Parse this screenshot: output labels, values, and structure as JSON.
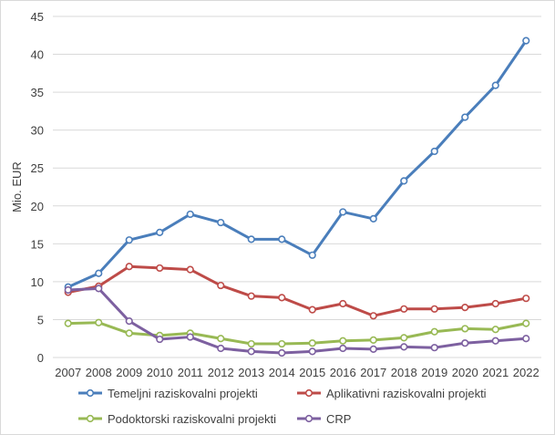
{
  "chart_data": {
    "type": "line",
    "title": "",
    "xlabel": "",
    "ylabel": "Mio. EUR",
    "ylim": [
      0,
      45
    ],
    "yticks": [
      0,
      5,
      10,
      15,
      20,
      25,
      30,
      35,
      40,
      45
    ],
    "grid": true,
    "legend_position": "bottom",
    "x": [
      "2007",
      "2008",
      "2009",
      "2010",
      "2011",
      "2012",
      "2013",
      "2014",
      "2015",
      "2016",
      "2017",
      "2018",
      "2019",
      "2020",
      "2021",
      "2022"
    ],
    "series": [
      {
        "name": "Temeljni raziskovalni projekti",
        "color": "#4a7ebb",
        "values": [
          9.3,
          11.1,
          15.5,
          16.5,
          18.9,
          17.8,
          15.6,
          15.6,
          13.5,
          19.2,
          18.3,
          23.3,
          27.2,
          31.7,
          35.9,
          41.8
        ]
      },
      {
        "name": "Aplikativni raziskovalni projekti",
        "color": "#be4b48",
        "values": [
          8.6,
          9.4,
          12.0,
          11.8,
          11.6,
          9.5,
          8.1,
          7.9,
          6.3,
          7.1,
          5.5,
          6.4,
          6.4,
          6.6,
          7.1,
          7.8
        ]
      },
      {
        "name": "Podoktorski raziskovalni projekti",
        "color": "#98b954",
        "values": [
          4.5,
          4.6,
          3.2,
          2.9,
          3.2,
          2.5,
          1.8,
          1.8,
          1.9,
          2.2,
          2.3,
          2.6,
          3.4,
          3.8,
          3.7,
          4.5
        ]
      },
      {
        "name": "CRP",
        "color": "#7d60a0",
        "values": [
          8.9,
          9.1,
          4.8,
          2.4,
          2.7,
          1.2,
          0.8,
          0.6,
          0.8,
          1.2,
          1.1,
          1.4,
          1.3,
          1.9,
          2.2,
          2.5
        ]
      }
    ]
  }
}
